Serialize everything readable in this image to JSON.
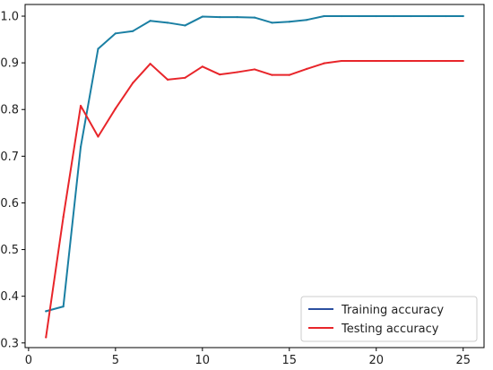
{
  "chart_data": {
    "type": "line",
    "xlim": [
      -0.2,
      26.2
    ],
    "ylim": [
      0.29,
      1.025
    ],
    "x_ticks": [
      0,
      5,
      10,
      15,
      20,
      25
    ],
    "y_ticks": [
      0.3,
      0.4,
      0.5,
      0.6,
      0.7,
      0.8,
      0.9,
      1.0
    ],
    "grid": false,
    "legend_position": "lower-right",
    "series": [
      {
        "name": "Training accuracy",
        "color": "#1a7fa3",
        "legend_color": "#2b4fa0",
        "x": [
          1,
          2,
          3,
          4,
          5,
          6,
          7,
          8,
          9,
          10,
          11,
          12,
          13,
          14,
          15,
          16,
          17,
          18,
          19,
          20,
          21,
          22,
          23,
          24,
          25
        ],
        "y": [
          0.368,
          0.378,
          0.72,
          0.93,
          0.963,
          0.968,
          0.99,
          0.986,
          0.98,
          0.999,
          0.998,
          0.998,
          0.997,
          0.986,
          0.988,
          0.992,
          1.0,
          1.0,
          1.0,
          1.0,
          1.0,
          1.0,
          1.0,
          1.0,
          1.0
        ]
      },
      {
        "name": "Testing accuracy",
        "color": "#e8252a",
        "legend_color": "#e8252a",
        "x": [
          1,
          2,
          3,
          4,
          5,
          6,
          7,
          8,
          9,
          10,
          11,
          12,
          13,
          14,
          15,
          16,
          17,
          18,
          19,
          20,
          21,
          22,
          23,
          24,
          25
        ],
        "y": [
          0.312,
          0.57,
          0.808,
          0.742,
          0.802,
          0.857,
          0.898,
          0.864,
          0.868,
          0.892,
          0.875,
          0.88,
          0.886,
          0.874,
          0.874,
          0.887,
          0.899,
          0.904,
          0.904,
          0.904,
          0.904,
          0.904,
          0.904,
          0.904,
          0.904
        ]
      }
    ]
  }
}
